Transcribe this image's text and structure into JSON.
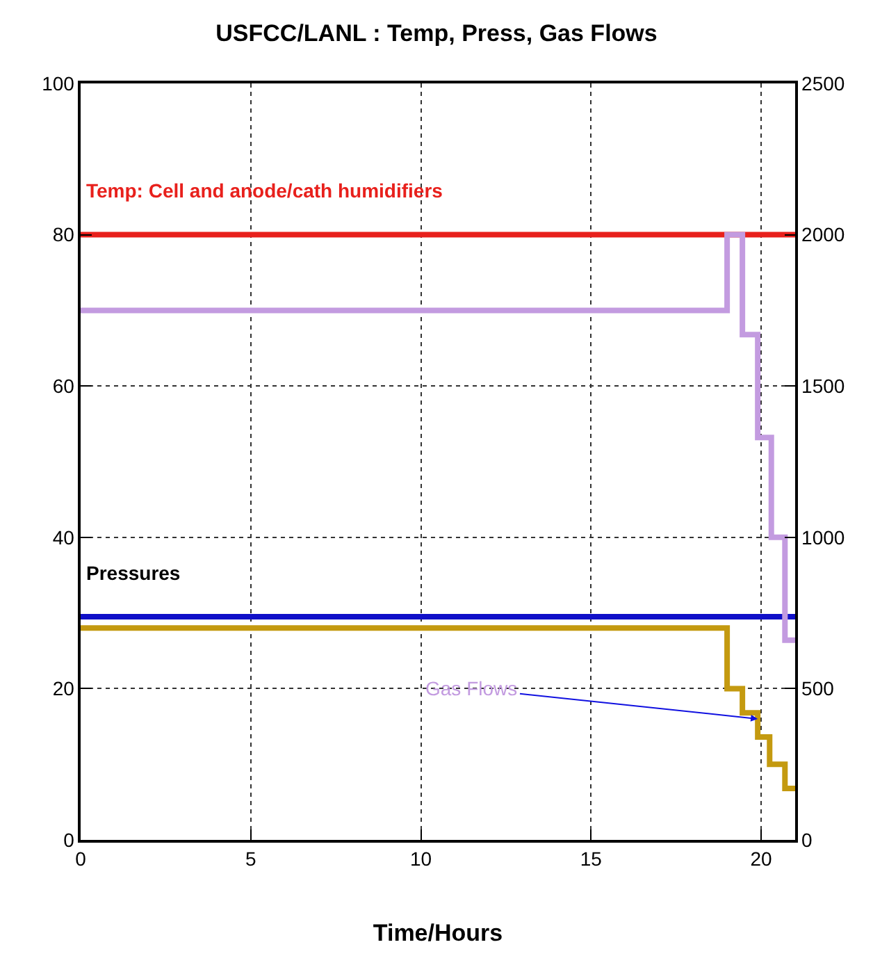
{
  "chart_data": {
    "type": "line",
    "title": "USFCC/LANL : Temp, Press, Gas Flows",
    "xlabel": "Time/Hours",
    "xlim": [
      0,
      21
    ],
    "xticks": [
      0,
      5,
      10,
      15,
      20
    ],
    "ylim": [
      0,
      100
    ],
    "yticks": [
      0,
      20,
      40,
      60,
      80,
      100
    ],
    "y2lim": [
      0,
      2500
    ],
    "y2ticks": [
      0,
      500,
      1000,
      1500,
      2000,
      2500
    ],
    "grid": true,
    "legend": false,
    "series": [
      {
        "name": "Temp: Cell and anode/cath humidifiers",
        "color": "#e8201c",
        "x": [
          0,
          21
        ],
        "values": [
          80,
          80
        ]
      },
      {
        "name": "Pressures",
        "color": "#1010c8",
        "x": [
          0,
          21
        ],
        "values": [
          29.5,
          29.5
        ]
      },
      {
        "type": "step",
        "axis": "y2",
        "color": "#c39be0",
        "x": [
          0,
          19,
          19.45,
          19.9,
          20.3,
          20.7,
          21
        ],
        "values": [
          1750,
          2000,
          1670,
          1330,
          1000,
          660,
          660
        ]
      },
      {
        "type": "step",
        "axis": "y2",
        "color": "#c49a10",
        "x": [
          0,
          19,
          19.45,
          19.9,
          20.25,
          20.7,
          21
        ],
        "values": [
          700,
          500,
          420,
          340,
          250,
          170,
          170
        ]
      }
    ],
    "annotations": [
      {
        "text": "Gas Flows",
        "x": 19.9,
        "y": 16
      }
    ]
  }
}
